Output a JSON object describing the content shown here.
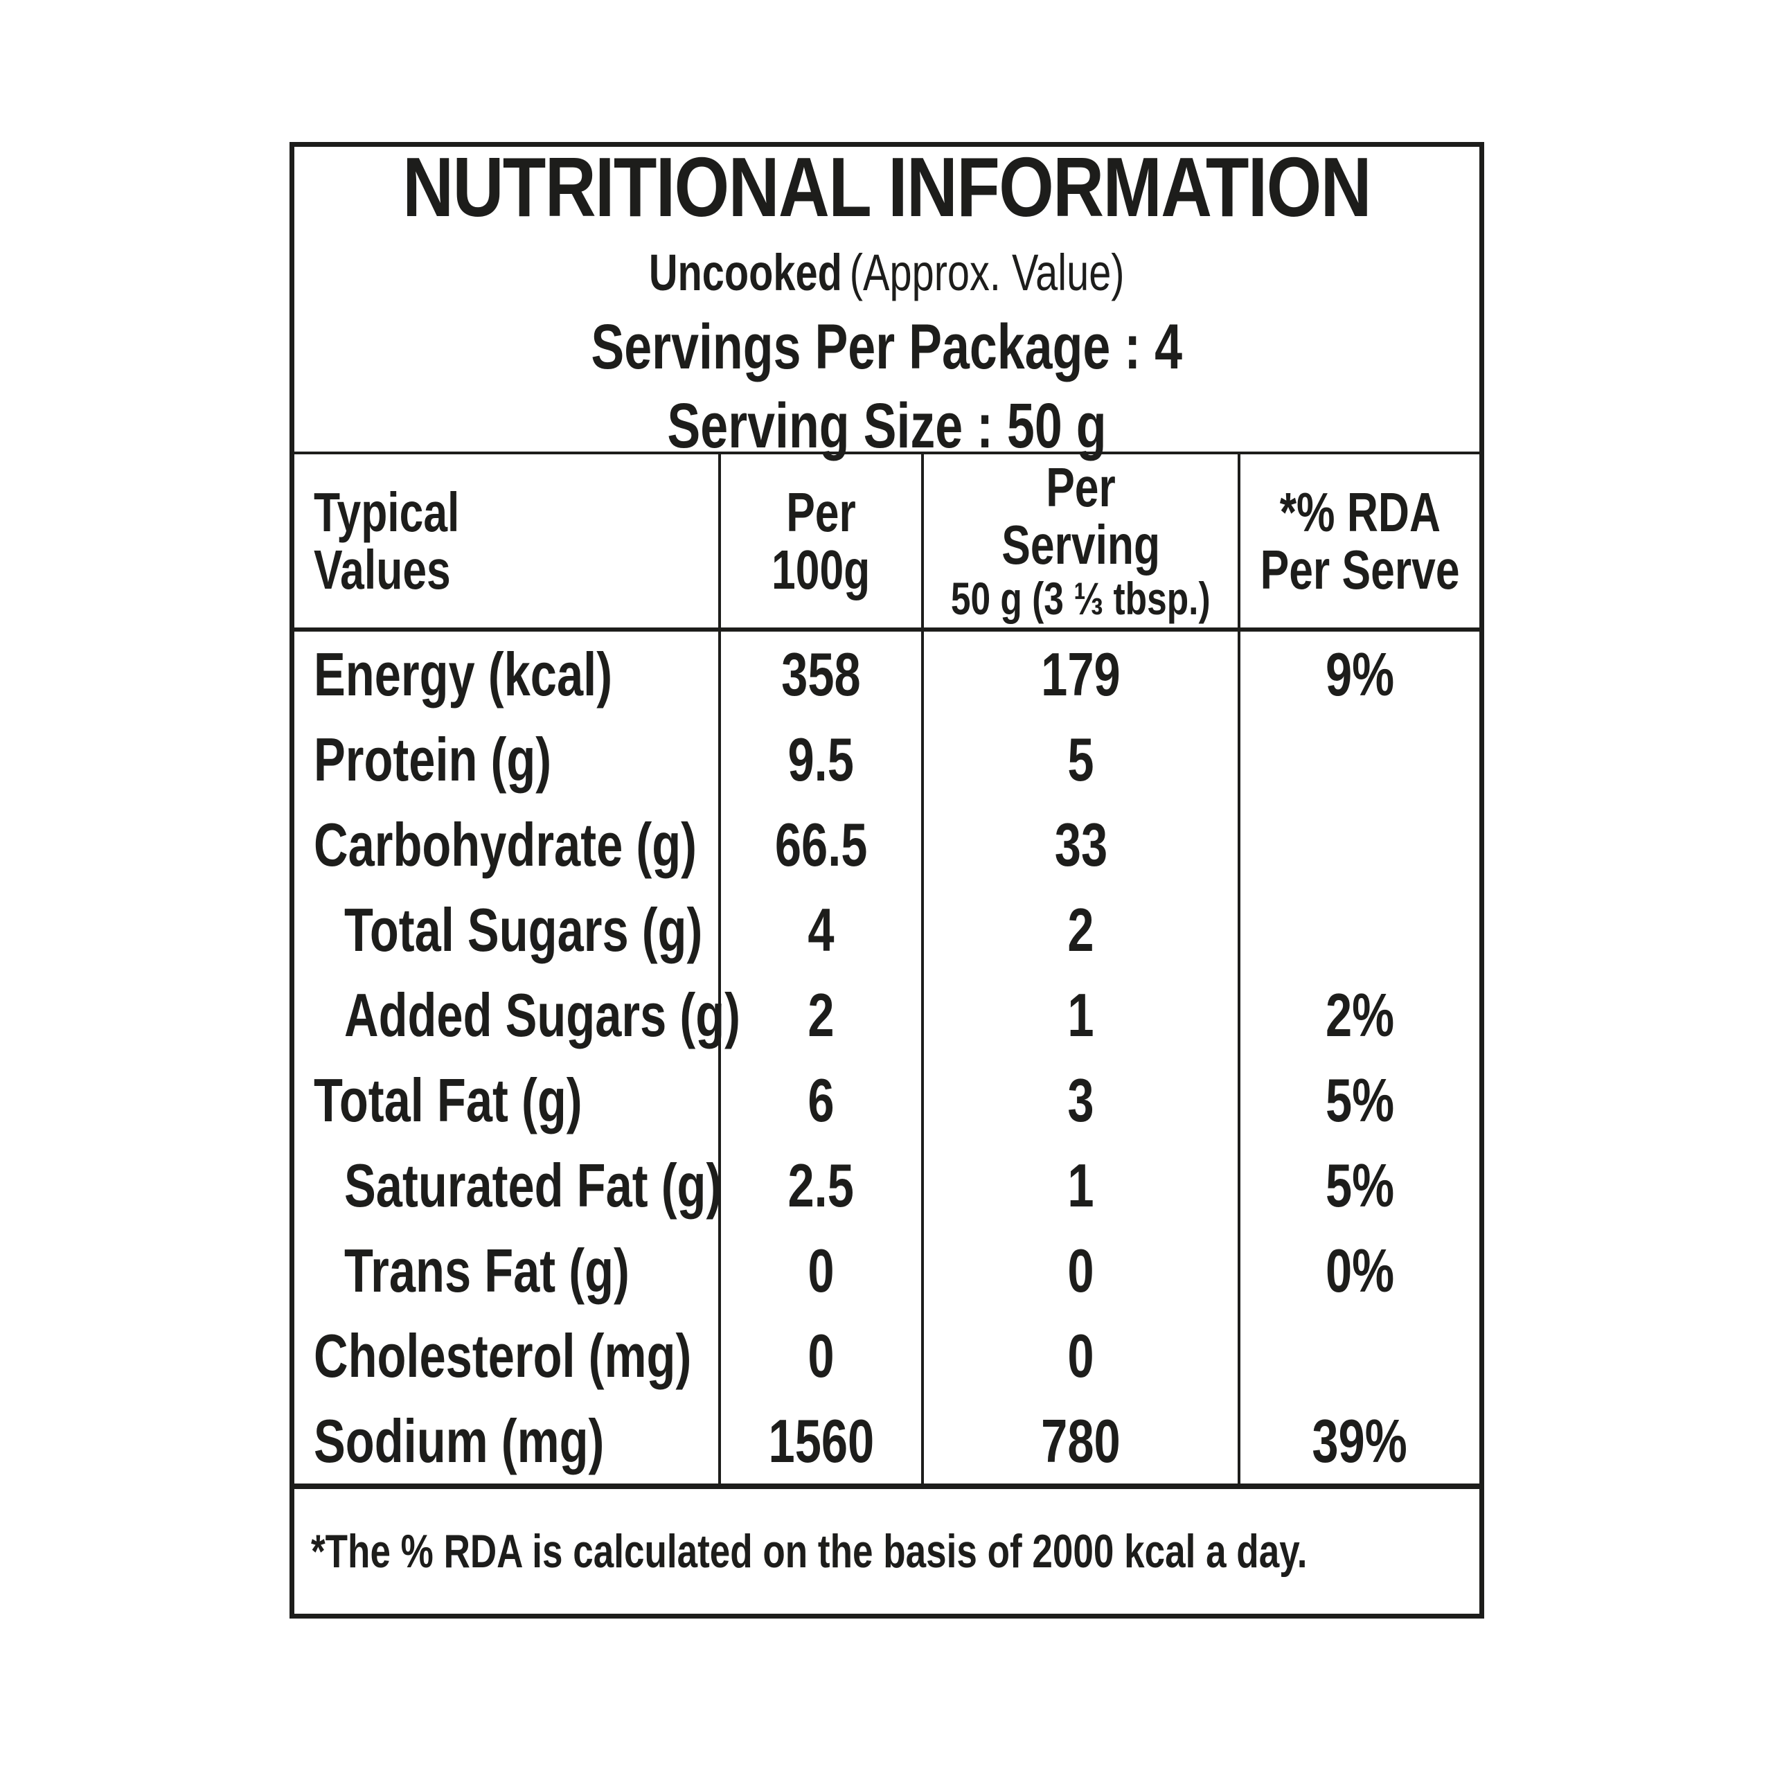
{
  "header": {
    "title": "NUTRITIONAL INFORMATION",
    "subtitle_bold": "Uncooked",
    "subtitle_rest": "(Approx. Value)",
    "servings_line": "Servings Per Package : 4",
    "serving_size_line": "Serving Size : 50 g"
  },
  "columns": {
    "col1_line1": "Typical",
    "col1_line2": "Values",
    "col2_line1": "Per",
    "col2_line2": "100g",
    "col3_line1": "Per",
    "col3_line2": "Serving",
    "col3_line3": "50 g (3 ⅓ tbsp.)",
    "col4_line1": "*% RDA",
    "col4_line2": "Per Serve"
  },
  "rows": [
    {
      "label": "Energy (kcal)",
      "per_100g": "358",
      "per_serving": "179",
      "rda_per_serve": "9%"
    },
    {
      "label": "Protein (g)",
      "per_100g": "9.5",
      "per_serving": "5",
      "rda_per_serve": ""
    },
    {
      "label": "Carbohydrate (g)",
      "per_100g": "66.5",
      "per_serving": "33",
      "rda_per_serve": ""
    },
    {
      "label": "Total Sugars (g)",
      "per_100g": "4",
      "per_serving": "2",
      "rda_per_serve": ""
    },
    {
      "label": "Added Sugars (g)",
      "per_100g": "2",
      "per_serving": "1",
      "rda_per_serve": "2%"
    },
    {
      "label": "Total Fat (g)",
      "per_100g": "6",
      "per_serving": "3",
      "rda_per_serve": "5%"
    },
    {
      "label": "Saturated Fat (g)",
      "per_100g": "2.5",
      "per_serving": "1",
      "rda_per_serve": "5%"
    },
    {
      "label": "Trans Fat (g)",
      "per_100g": "0",
      "per_serving": "0",
      "rda_per_serve": "0%"
    },
    {
      "label": "Cholesterol (mg)",
      "per_100g": "0",
      "per_serving": "0",
      "rda_per_serve": ""
    },
    {
      "label": "Sodium (mg)",
      "per_100g": "1560",
      "per_serving": "780",
      "rda_per_serve": "39%"
    }
  ],
  "footer": {
    "note": "*The % RDA is calculated on the basis of 2000 kcal a day."
  },
  "colors": {
    "ink": "#1d1d1b",
    "background": "#ffffff"
  }
}
